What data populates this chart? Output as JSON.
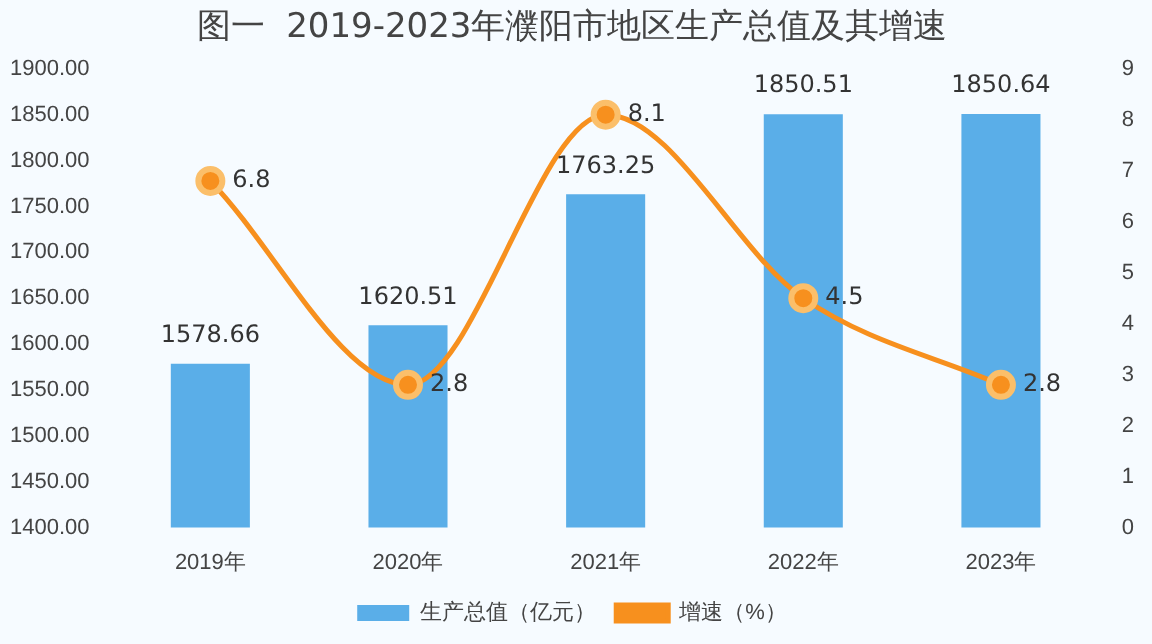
{
  "chart_data": {
    "type": "bar",
    "title": "图一  2019-2023年濮阳市地区生产总值及其增速",
    "categories": [
      "2019年",
      "2020年",
      "2021年",
      "2022年",
      "2023年"
    ],
    "series": [
      {
        "name": "生产总值（亿元）",
        "color": "#5aaee8",
        "values": [
          1578.66,
          1620.51,
          1763.25,
          1850.51,
          1850.64
        ]
      },
      {
        "name": "增速（%）",
        "type": "line",
        "axis": "y2",
        "color": "#f7901e",
        "values": [
          6.8,
          2.8,
          8.1,
          4.5,
          2.8
        ]
      }
    ],
    "ylim": [
      1400,
      1900
    ],
    "yticks": [
      {
        "value": 1400,
        "label": "1400.00"
      },
      {
        "value": 1450,
        "label": "1450.00"
      },
      {
        "value": 1500,
        "label": "1500.00"
      },
      {
        "value": 1550,
        "label": "1550.00"
      },
      {
        "value": 1600,
        "label": "1600.00"
      },
      {
        "value": 1650,
        "label": "1650.00"
      },
      {
        "value": 1700,
        "label": "1700.00"
      },
      {
        "value": 1750,
        "label": "1750.00"
      },
      {
        "value": 1800,
        "label": "1800.00"
      },
      {
        "value": 1850,
        "label": "1850.00"
      },
      {
        "value": 1900,
        "label": "1900.00"
      }
    ],
    "y2lim": [
      0,
      9
    ],
    "y2ticks": [
      0,
      1,
      2,
      3,
      4,
      5,
      6,
      7,
      8,
      9
    ],
    "marker": "circle",
    "data_labels": true,
    "legend": "bottom",
    "grid": false
  }
}
